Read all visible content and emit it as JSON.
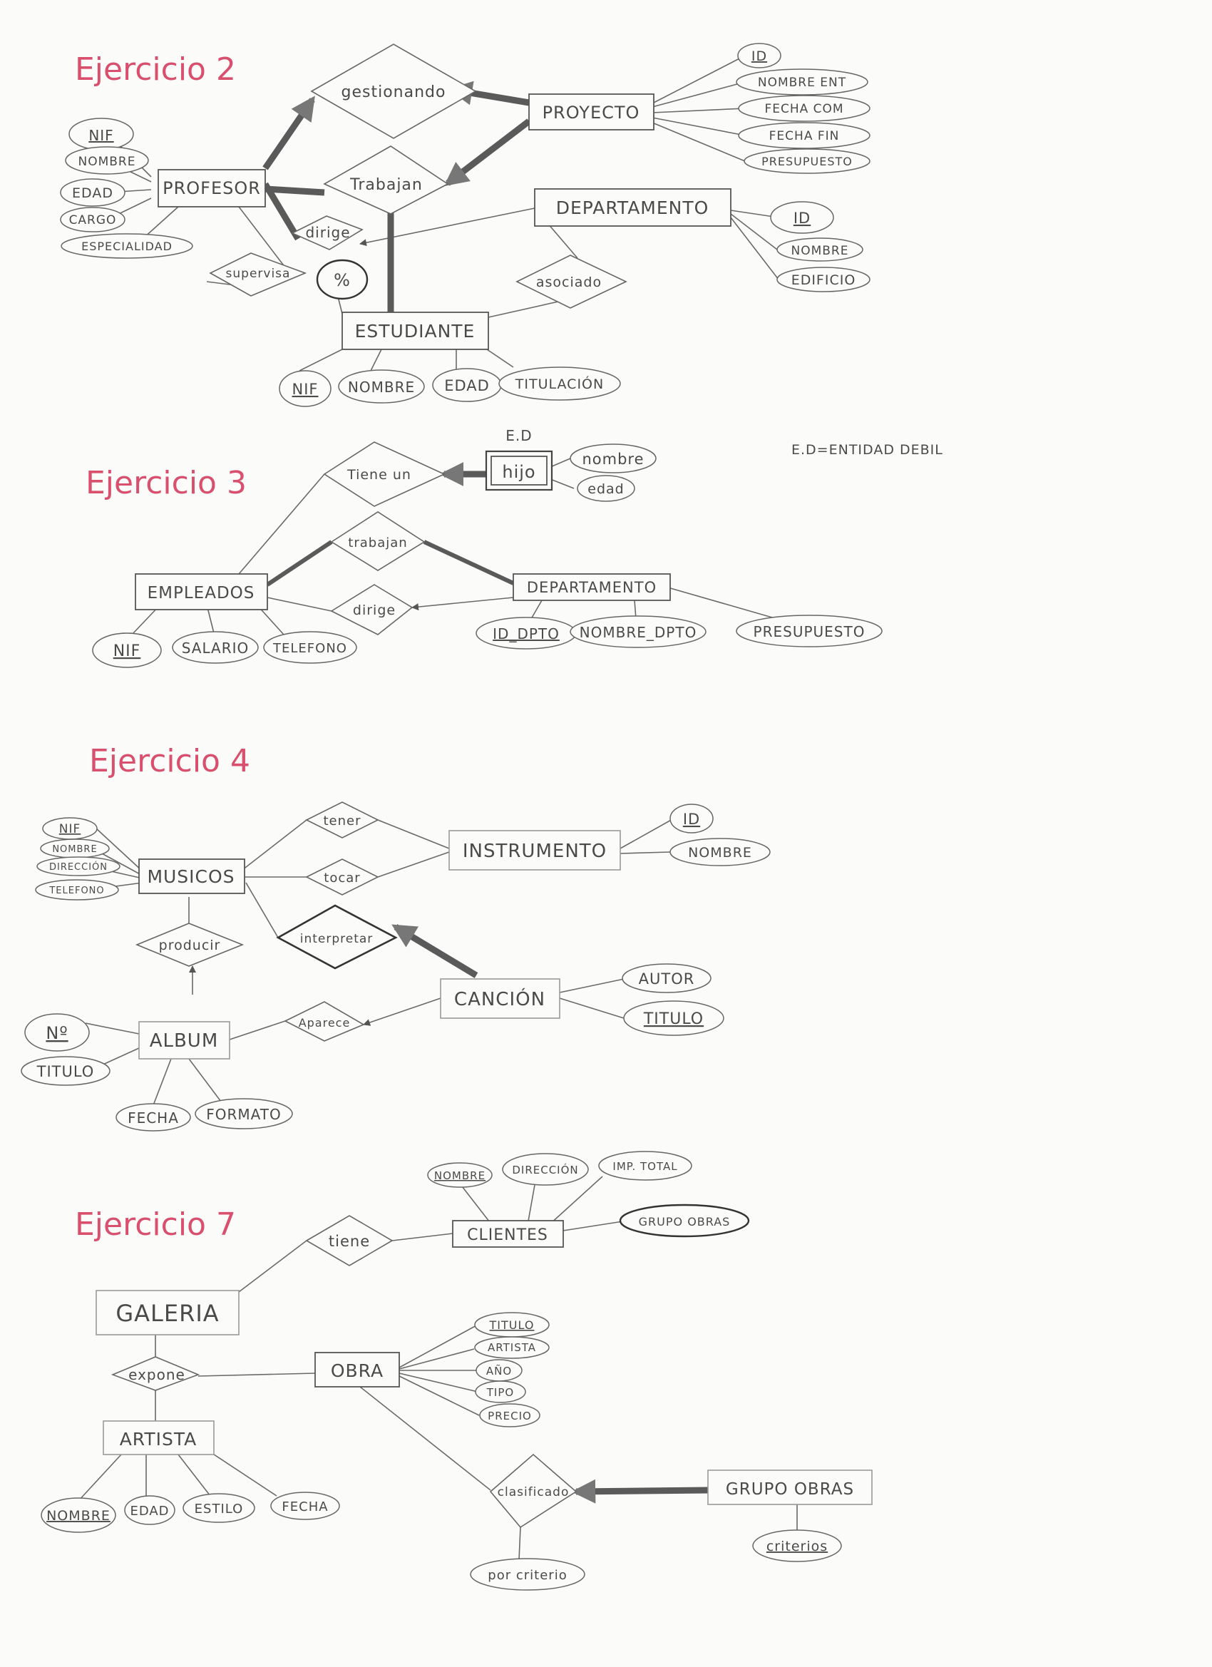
{
  "headings": {
    "ex2": "Ejercicio 2",
    "ex3": "Ejercicio 3",
    "ex4": "Ejercicio 4",
    "ex7": "Ejercicio 7"
  },
  "legend": "E.D=ENTIDAD DEBIL",
  "ex2": {
    "entities": {
      "profesor": "PROFESOR",
      "proyecto": "PROYECTO",
      "departamento": "DEPARTAMENTO",
      "estudiante": "ESTUDIANTE"
    },
    "relations": {
      "gestionando": "gestionando",
      "trabajan": "Trabajan",
      "dirige": "dirige",
      "supervisa": "supervisa",
      "asociado": "asociado"
    },
    "percent": "%",
    "profesor_attrs": [
      "NIF",
      "NOMBRE",
      "EDAD",
      "CARGO",
      "ESPECIALIDAD"
    ],
    "proyecto_attrs": [
      "ID",
      "NOMBRE ENT",
      "FECHA COM",
      "FECHA FIN",
      "PRESUPUESTO"
    ],
    "departamento_attrs": [
      "ID",
      "NOMBRE",
      "EDIFICIO"
    ],
    "estudiante_attrs": [
      "NIF",
      "NOMBRE",
      "EDAD",
      "TITULACIÓN"
    ]
  },
  "ex3": {
    "weak_tag": "E.D",
    "entities": {
      "hijo": "hijo",
      "empleados": "EMPLEADOS",
      "departamento": "DEPARTAMENTO"
    },
    "relations": {
      "tiene_un": "Tiene un",
      "trabajan": "trabajan",
      "dirige": "dirige"
    },
    "hijo_attrs": [
      "nombre",
      "edad"
    ],
    "empleados_attrs": [
      "NIF",
      "SALARIO",
      "TELEFONO"
    ],
    "departamento_attrs": [
      "ID_DPTO",
      "NOMBRE_DPTO",
      "PRESUPUESTO"
    ]
  },
  "ex4": {
    "entities": {
      "musicos": "MUSICOS",
      "instrumento": "INSTRUMENTO",
      "cancion": "CANCIÓN",
      "album": "ALBUM"
    },
    "relations": {
      "tener": "tener",
      "tocar": "tocar",
      "interpretar": "interpretar",
      "producir": "producir",
      "aparece": "Aparece"
    },
    "musicos_attrs": [
      "NIF",
      "NOMBRE",
      "DIRECCIÓN",
      "TELEFONO"
    ],
    "instrumento_attrs": [
      "ID",
      "NOMBRE"
    ],
    "cancion_attrs": [
      "AUTOR",
      "TITULO"
    ],
    "album_attrs": [
      "Nº",
      "TITULO",
      "FECHA",
      "FORMATO"
    ]
  },
  "ex7": {
    "entities": {
      "clientes": "CLIENTES",
      "galeria": "GALERIA",
      "obra": "OBRA",
      "artista": "ARTISTA",
      "grupo_obras": "GRUPO OBRAS"
    },
    "relations": {
      "tiene": "tiene",
      "expone": "expone",
      "clasificado": "clasificado"
    },
    "clientes_attrs": [
      "NOMBRE",
      "DIRECCIÓN",
      "IMP. TOTAL",
      "GRUPO OBRAS"
    ],
    "obra_attrs": [
      "TITULO",
      "ARTISTA",
      "AÑO",
      "TIPO",
      "PRECIO"
    ],
    "artista_attrs": [
      "NOMBRE",
      "EDAD",
      "ESTILO",
      "FECHA"
    ],
    "grupo_attrs": [
      "criterios"
    ],
    "clasificado_attr": "por criterio"
  }
}
